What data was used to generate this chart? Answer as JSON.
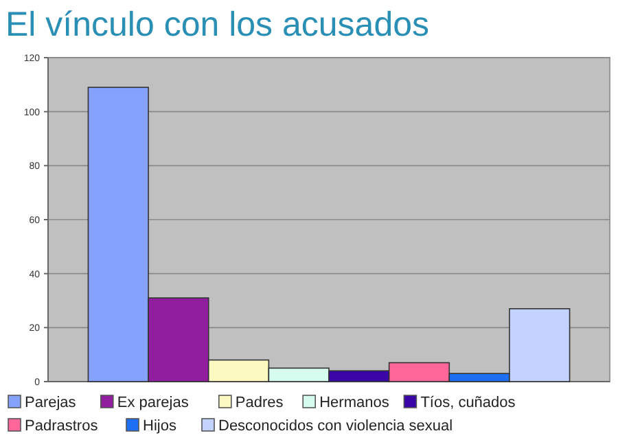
{
  "chart_data": {
    "type": "bar",
    "title": "El vínculo con los acusados",
    "categories": [
      null
    ],
    "series": [
      {
        "name": "Parejas",
        "color": "#85a2ff",
        "values": [
          109
        ]
      },
      {
        "name": "Ex parejas",
        "color": "#901e9e",
        "values": [
          31
        ]
      },
      {
        "name": "Padres",
        "color": "#fbf8c0",
        "values": [
          8
        ]
      },
      {
        "name": "Hermanos",
        "color": "#d6fbef",
        "values": [
          5
        ]
      },
      {
        "name": "Tíos, cuñados",
        "color": "#3a06a8",
        "values": [
          4
        ]
      },
      {
        "name": "Padrastros",
        "color": "#ff6699",
        "values": [
          7
        ]
      },
      {
        "name": "Hijos",
        "color": "#1f6ff5",
        "values": [
          3
        ]
      },
      {
        "name": "Desconocidos con violencia sexual",
        "color": "#c3d2ff",
        "values": [
          27
        ]
      }
    ],
    "ylim": [
      0,
      120
    ],
    "yticks": [
      0,
      20,
      40,
      60,
      80,
      100,
      120
    ],
    "grid": "y",
    "legend": "bottom"
  }
}
